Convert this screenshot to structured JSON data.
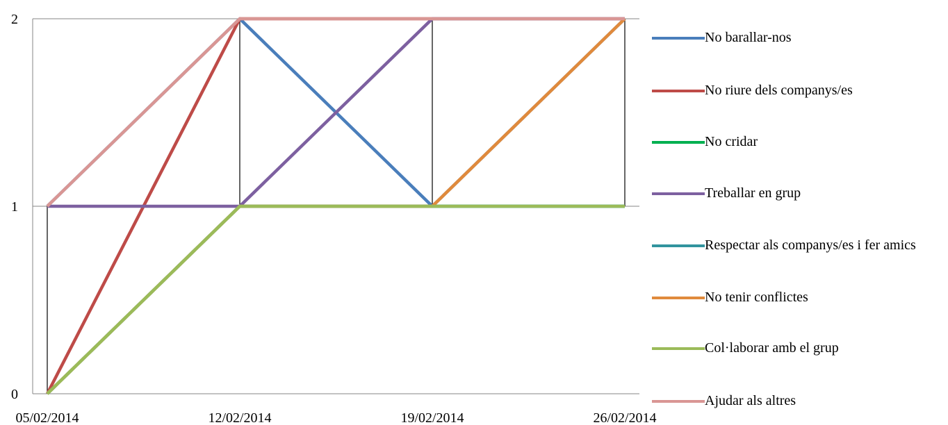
{
  "chart_data": {
    "type": "line",
    "categories": [
      "05/02/2014",
      "12/02/2014",
      "19/02/2014",
      "26/02/2014"
    ],
    "series": [
      {
        "name": "No barallar-nos",
        "color": "#4a7ebb",
        "values": [
          1,
          2,
          1,
          2
        ]
      },
      {
        "name": "No riure dels companys/es",
        "color": "#be4b48",
        "values": [
          0,
          2,
          2,
          2
        ]
      },
      {
        "name": "No cridar",
        "color": "#00b050",
        "values": [
          0,
          1,
          1,
          1
        ]
      },
      {
        "name": "Treballar en grup",
        "color": "#7d60a0",
        "values": [
          1,
          1,
          2,
          2
        ]
      },
      {
        "name": "Respectar als companys/es i fer amics",
        "color": "#31949e",
        "values": [
          0,
          1,
          1,
          1
        ]
      },
      {
        "name": "No tenir conflictes",
        "color": "#e08a3c",
        "values": [
          0,
          1,
          1,
          2
        ]
      },
      {
        "name": "Col·laborar amb el grup",
        "color": "#9bbb59",
        "values": [
          0,
          1,
          1,
          1
        ]
      },
      {
        "name": "Ajudar als altres",
        "color": "#d99694",
        "values": [
          1,
          2,
          2,
          2
        ]
      }
    ],
    "ylim": [
      0,
      2
    ],
    "yticks": [
      0,
      1,
      2
    ],
    "grid": true
  }
}
